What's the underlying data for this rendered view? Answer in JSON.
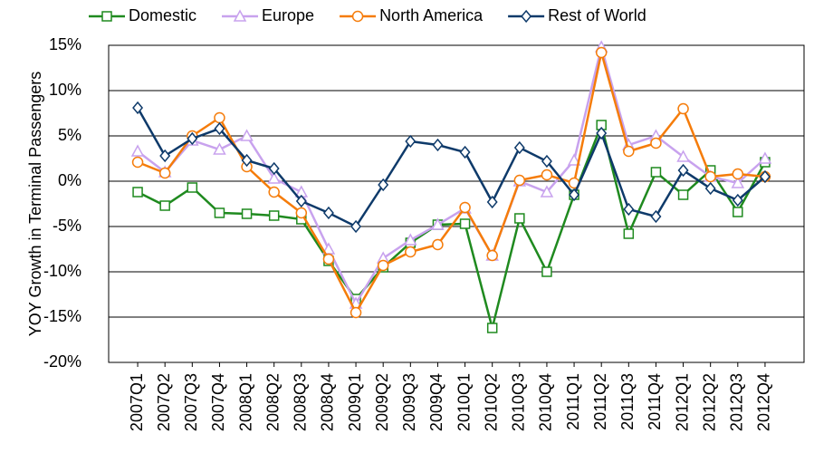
{
  "chart_data": {
    "type": "line",
    "y_label": "YOY Growth in Terminal Passengers",
    "categories": [
      "2007Q1",
      "2007Q2",
      "2007Q3",
      "2007Q4",
      "2008Q1",
      "2008Q2",
      "2008Q3",
      "2008Q4",
      "2009Q1",
      "2009Q2",
      "2009Q3",
      "2009Q4",
      "2010Q1",
      "2010Q2",
      "2010Q3",
      "2010Q4",
      "2011Q1",
      "2011Q2",
      "2011Q3",
      "2011Q4",
      "2012Q1",
      "2012Q2",
      "2012Q3",
      "2012Q4"
    ],
    "series": [
      {
        "name": "Domestic",
        "color": "#1f8a1f",
        "marker": "square",
        "values": [
          -1.2,
          -2.7,
          -0.7,
          -3.5,
          -3.6,
          -3.8,
          -4.2,
          -8.8,
          -13,
          -9.5,
          -6.8,
          -4.8,
          -4.7,
          -16.2,
          -4.1,
          -10,
          -1.5,
          6.2,
          -5.8,
          1.0,
          -1.5,
          1.2,
          -3.4,
          2.1
        ]
      },
      {
        "name": "Europe",
        "color": "#c8a2ee",
        "marker": "triangle",
        "values": [
          3.3,
          1.0,
          4.5,
          3.5,
          5.0,
          0.3,
          -1.2,
          -7.5,
          -13.5,
          -8.5,
          -6.5,
          -4.8,
          -3.0,
          -8.2,
          0.0,
          -1.2,
          2.3,
          14.8,
          4.0,
          5.0,
          2.7,
          0.5,
          -0.2,
          2.5
        ]
      },
      {
        "name": "North America",
        "color": "#f57c0a",
        "marker": "circle",
        "values": [
          2.1,
          0.9,
          5.0,
          7.0,
          1.6,
          -1.2,
          -3.5,
          -8.6,
          -14.5,
          -9.3,
          -7.8,
          -7.0,
          -2.9,
          -8.2,
          0.1,
          0.7,
          -0.2,
          14.2,
          3.3,
          4.2,
          8.0,
          0.5,
          0.8,
          0.5
        ]
      },
      {
        "name": "Rest of World",
        "color": "#0e3a6a",
        "marker": "diamond",
        "values": [
          8.1,
          2.8,
          4.7,
          5.8,
          2.3,
          1.4,
          -2.2,
          -3.5,
          -5.0,
          -0.4,
          4.4,
          4.0,
          3.2,
          -2.3,
          3.7,
          2.2,
          -1.5,
          5.3,
          -3.1,
          -3.9,
          1.2,
          -0.8,
          -2.1,
          0.5
        ]
      }
    ],
    "ylim": [
      -20,
      15
    ],
    "yticks": [
      {
        "value": -20,
        "label": "-20%"
      },
      {
        "value": -15,
        "label": "-15%"
      },
      {
        "value": -10,
        "label": "-10%"
      },
      {
        "value": -5,
        "label": "-5%"
      },
      {
        "value": 0,
        "label": "0%"
      },
      {
        "value": 5,
        "label": "5%"
      },
      {
        "value": 10,
        "label": "10%"
      },
      {
        "value": 15,
        "label": "15%"
      }
    ],
    "grid": true,
    "legend": "top"
  }
}
